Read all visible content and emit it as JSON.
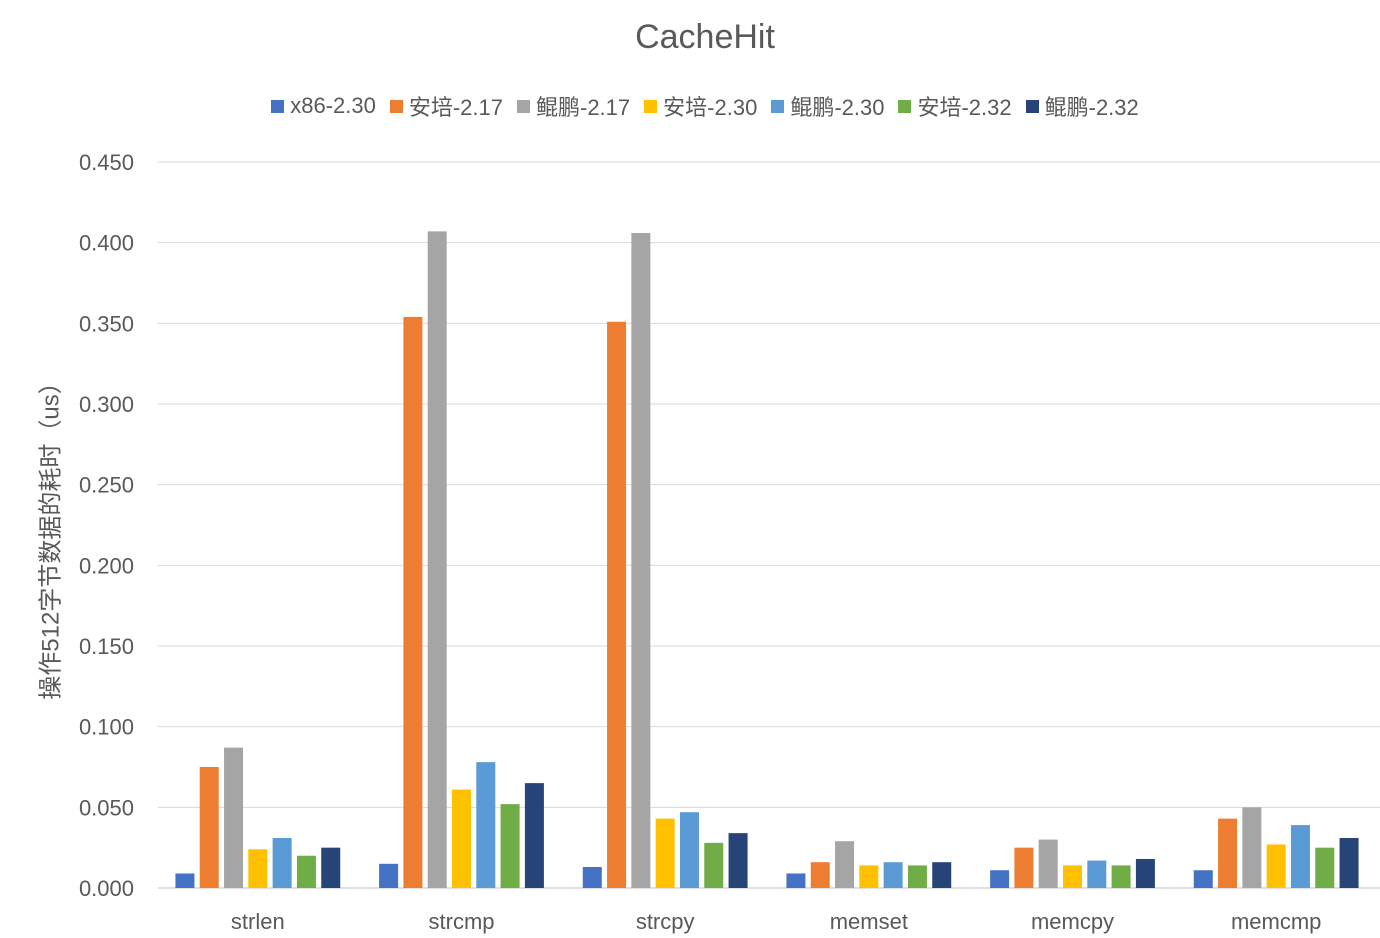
{
  "chart_data": {
    "type": "bar",
    "title": "CacheHit",
    "xlabel": "",
    "ylabel": "操作512字节数据的耗时（us）",
    "ylim": [
      0,
      0.45
    ],
    "yticks": [
      "0.000",
      "0.050",
      "0.100",
      "0.150",
      "0.200",
      "0.250",
      "0.300",
      "0.350",
      "0.400",
      "0.450"
    ],
    "grid": true,
    "legend_position": "top",
    "categories": [
      "strlen",
      "strcmp",
      "strcpy",
      "memset",
      "memcpy",
      "memcmp"
    ],
    "series": [
      {
        "name": "x86-2.30",
        "color": "#4472C4",
        "values": [
          0.009,
          0.015,
          0.013,
          0.009,
          0.011,
          0.011
        ]
      },
      {
        "name": "安培-2.17",
        "color": "#ED7D31",
        "values": [
          0.075,
          0.354,
          0.351,
          0.016,
          0.025,
          0.043
        ]
      },
      {
        "name": "鲲鹏-2.17",
        "color": "#A5A5A5",
        "values": [
          0.087,
          0.407,
          0.406,
          0.029,
          0.03,
          0.05
        ]
      },
      {
        "name": "安培-2.30",
        "color": "#FFC000",
        "values": [
          0.024,
          0.061,
          0.043,
          0.014,
          0.014,
          0.027
        ]
      },
      {
        "name": "鲲鹏-2.30",
        "color": "#5B9BD5",
        "values": [
          0.031,
          0.078,
          0.047,
          0.016,
          0.017,
          0.039
        ]
      },
      {
        "name": "安培-2.32",
        "color": "#70AD47",
        "values": [
          0.02,
          0.052,
          0.028,
          0.014,
          0.014,
          0.025
        ]
      },
      {
        "name": "鲲鹏-2.32",
        "color": "#264478",
        "values": [
          0.025,
          0.065,
          0.034,
          0.016,
          0.018,
          0.031
        ]
      }
    ]
  }
}
